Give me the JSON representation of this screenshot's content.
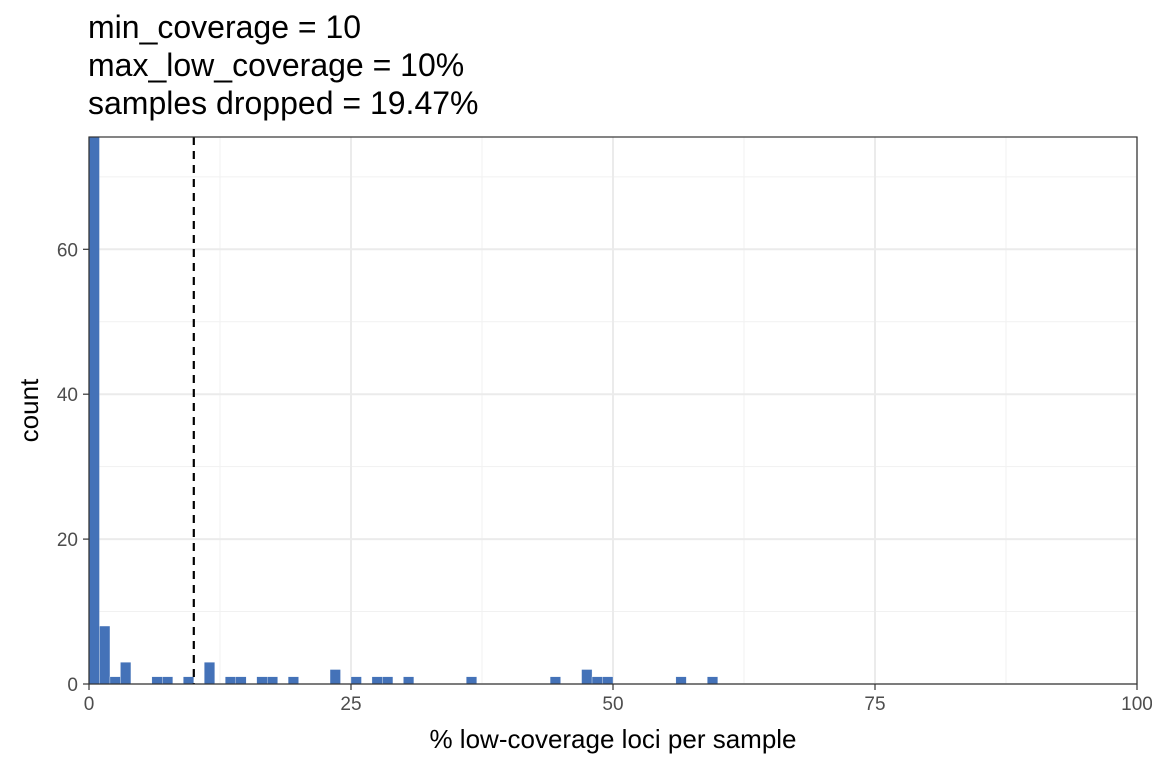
{
  "chart_data": {
    "type": "bar",
    "title_lines": [
      "min_coverage = 10",
      "max_low_coverage = 10%",
      "samples dropped = 19.47%"
    ],
    "xlabel": "% low-coverage loci per sample",
    "ylabel": "count",
    "xlim": [
      0,
      100
    ],
    "ylim": [
      0,
      75.5
    ],
    "x_ticks": [
      0,
      25,
      50,
      75,
      100
    ],
    "x_tick_labels": [
      "0",
      "25",
      "50",
      "75",
      "100"
    ],
    "y_ticks": [
      0,
      20,
      40,
      60
    ],
    "y_tick_labels": [
      "0",
      "20",
      "40",
      "60"
    ],
    "bin_width": 1,
    "bins": [
      {
        "x": 0.5,
        "count": 76
      },
      {
        "x": 1.5,
        "count": 8
      },
      {
        "x": 2.5,
        "count": 1
      },
      {
        "x": 3.5,
        "count": 3
      },
      {
        "x": 6.5,
        "count": 1
      },
      {
        "x": 7.5,
        "count": 1
      },
      {
        "x": 9.5,
        "count": 1
      },
      {
        "x": 11.5,
        "count": 3
      },
      {
        "x": 13.5,
        "count": 1
      },
      {
        "x": 14.5,
        "count": 1
      },
      {
        "x": 16.5,
        "count": 1
      },
      {
        "x": 17.5,
        "count": 1
      },
      {
        "x": 19.5,
        "count": 1
      },
      {
        "x": 23.5,
        "count": 2
      },
      {
        "x": 25.5,
        "count": 1
      },
      {
        "x": 27.5,
        "count": 1
      },
      {
        "x": 28.5,
        "count": 1
      },
      {
        "x": 30.5,
        "count": 1
      },
      {
        "x": 36.5,
        "count": 1
      },
      {
        "x": 44.5,
        "count": 1
      },
      {
        "x": 47.5,
        "count": 2
      },
      {
        "x": 48.5,
        "count": 1
      },
      {
        "x": 49.5,
        "count": 1
      },
      {
        "x": 56.5,
        "count": 1
      },
      {
        "x": 59.5,
        "count": 1
      }
    ],
    "threshold_line": {
      "x": 10,
      "style": "dashed"
    },
    "bar_color": "#4472b8",
    "grid": true
  }
}
